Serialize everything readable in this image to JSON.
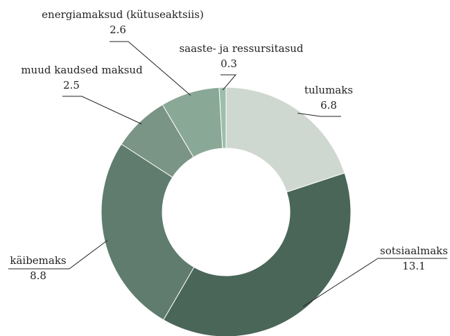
{
  "chart_data": {
    "type": "donut",
    "categories": [
      "tulumaks",
      "sotsiaalmaks",
      "käibemaks",
      "muud kaudsed maksud",
      "energiamaksud (kütuseaktsiis)",
      "saaste- ja ressursitasud"
    ],
    "values": [
      6.8,
      13.1,
      8.8,
      2.5,
      2.6,
      0.3
    ],
    "colors": [
      "#cfd8d0",
      "#4a6659",
      "#5f7c6e",
      "#7a9485",
      "#8aa896",
      "#9dbfaa"
    ]
  }
}
